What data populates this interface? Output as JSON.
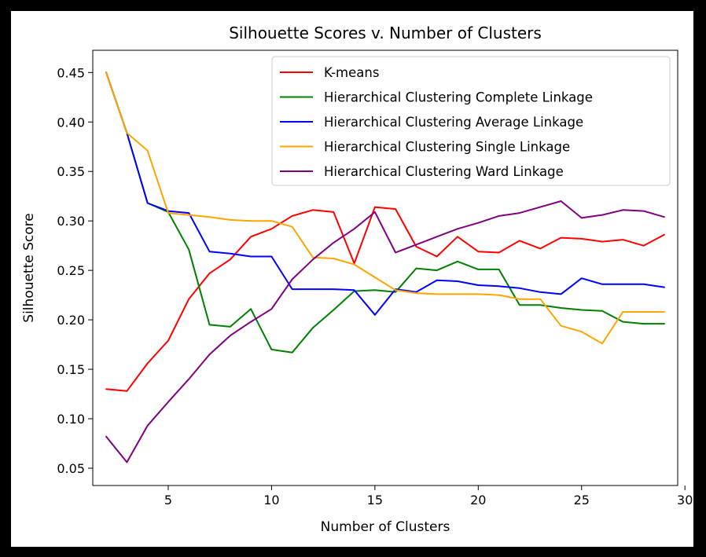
{
  "chart_data": {
    "type": "line",
    "title": "Silhouette Scores v. Number of Clusters",
    "xlabel": "Number of Clusters",
    "ylabel": "Silhouette Score",
    "xlim": [
      1.35,
      29.65
    ],
    "ylim": [
      0.0325,
      0.4725
    ],
    "xticks": [
      5,
      10,
      15,
      20,
      25,
      30
    ],
    "xtick_labels": [
      "5",
      "10",
      "15",
      "20",
      "25",
      "30"
    ],
    "yticks": [
      0.05,
      0.1,
      0.15,
      0.2,
      0.25,
      0.3,
      0.35,
      0.4,
      0.45
    ],
    "ytick_labels": [
      "0.05",
      "0.10",
      "0.15",
      "0.20",
      "0.25",
      "0.30",
      "0.35",
      "0.40",
      "0.45"
    ],
    "grid": false,
    "legend_position": "top-right",
    "x": [
      2,
      3,
      4,
      5,
      6,
      7,
      8,
      9,
      10,
      11,
      12,
      13,
      14,
      15,
      16,
      17,
      18,
      19,
      20,
      21,
      22,
      23,
      24,
      25,
      26,
      27,
      28,
      29
    ],
    "series": [
      {
        "name": "K-means",
        "color": "#ff0000",
        "values": [
          0.13,
          0.128,
          0.156,
          0.179,
          0.221,
          0.247,
          0.261,
          0.284,
          0.292,
          0.305,
          0.311,
          0.309,
          0.257,
          0.314,
          0.312,
          0.274,
          0.264,
          0.284,
          0.269,
          0.268,
          0.28,
          0.272,
          0.283,
          0.282,
          0.279,
          0.281,
          0.275,
          0.286
        ]
      },
      {
        "name": "Hierarchical Clustering Complete Linkage",
        "color": "#008000",
        "values": [
          0.45,
          0.389,
          0.318,
          0.309,
          0.271,
          0.195,
          0.193,
          0.211,
          0.17,
          0.167,
          0.192,
          0.21,
          0.229,
          0.23,
          0.228,
          0.252,
          0.25,
          0.259,
          0.251,
          0.251,
          0.215,
          0.215,
          0.212,
          0.21,
          0.209,
          0.198,
          0.196,
          0.196
        ]
      },
      {
        "name": "Hierarchical Clustering Average Linkage",
        "color": "#0000ff",
        "values": [
          0.45,
          0.389,
          0.318,
          0.31,
          0.308,
          0.269,
          0.267,
          0.264,
          0.264,
          0.231,
          0.231,
          0.231,
          0.23,
          0.205,
          0.231,
          0.228,
          0.24,
          0.239,
          0.235,
          0.234,
          0.232,
          0.228,
          0.226,
          0.242,
          0.236,
          0.236,
          0.236,
          0.233
        ]
      },
      {
        "name": "Hierarchical Clustering Single Linkage",
        "color": "#ffa500",
        "values": [
          0.45,
          0.389,
          0.371,
          0.308,
          0.306,
          0.304,
          0.301,
          0.3,
          0.3,
          0.294,
          0.263,
          0.262,
          0.256,
          0.243,
          0.23,
          0.227,
          0.226,
          0.226,
          0.226,
          0.225,
          0.221,
          0.221,
          0.194,
          0.188,
          0.176,
          0.208,
          0.208,
          0.208
        ]
      },
      {
        "name": "Hierarchical Clustering Ward Linkage",
        "color": "#800080",
        "values": [
          0.082,
          0.056,
          0.093,
          0.117,
          0.14,
          0.165,
          0.184,
          0.198,
          0.211,
          0.241,
          0.261,
          0.278,
          0.292,
          0.309,
          0.268,
          0.276,
          0.284,
          0.292,
          0.298,
          0.305,
          0.308,
          0.314,
          0.32,
          0.303,
          0.306,
          0.311,
          0.31,
          0.304
        ]
      }
    ]
  }
}
